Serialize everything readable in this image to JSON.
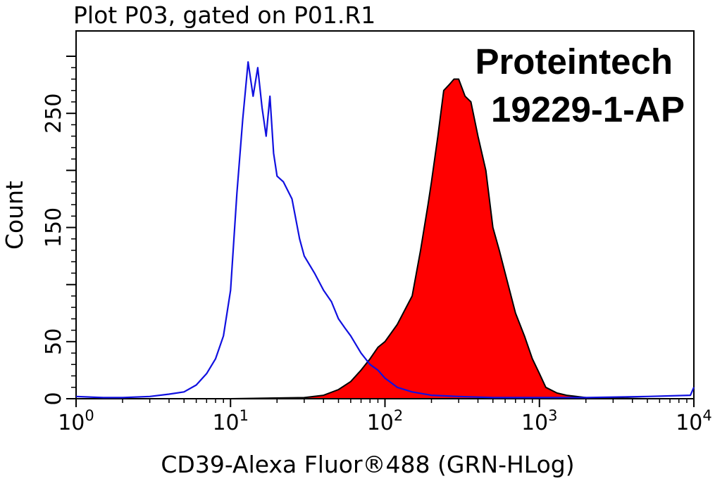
{
  "chart_data": {
    "type": "area",
    "title": "Plot P03, gated on P01.R1",
    "xlabel": "CD39-Alexa Fluor®488 (GRN-HLog)",
    "ylabel": "Count",
    "x_scale": "log",
    "xlim": [
      1,
      10000
    ],
    "ylim": [
      0,
      300
    ],
    "x_ticks": [
      {
        "base": "10",
        "exp": "0"
      },
      {
        "base": "10",
        "exp": "1"
      },
      {
        "base": "10",
        "exp": "2"
      },
      {
        "base": "10",
        "exp": "3"
      },
      {
        "base": "10",
        "exp": "4"
      }
    ],
    "y_ticks": [
      {
        "value": 0,
        "label": "0"
      },
      {
        "value": 50,
        "label": "50"
      },
      {
        "value": 150,
        "label": "150"
      },
      {
        "value": 250,
        "label": "250"
      }
    ],
    "annotations": [
      "Proteintech",
      "19229-1-AP"
    ],
    "colors": {
      "control_line": "#1010e0",
      "sample_fill": "#ff0000",
      "sample_line": "#000000"
    },
    "series": [
      {
        "style": "blue outline",
        "x": [
          1,
          1.5,
          2,
          3,
          4,
          5,
          6,
          7,
          8,
          9,
          10,
          11,
          12,
          13,
          14,
          15,
          16,
          17,
          18,
          19,
          20,
          22,
          25,
          28,
          30,
          35,
          40,
          45,
          50,
          55,
          60,
          70,
          80,
          90,
          100,
          120,
          150,
          200,
          300,
          500,
          1000,
          2000,
          5000,
          9500,
          10000
        ],
        "y": [
          2,
          1,
          1,
          2,
          4,
          6,
          12,
          22,
          35,
          55,
          95,
          180,
          245,
          295,
          265,
          290,
          255,
          230,
          265,
          215,
          195,
          190,
          175,
          140,
          125,
          110,
          95,
          85,
          70,
          62,
          55,
          40,
          30,
          25,
          18,
          10,
          6,
          3,
          2,
          1,
          1,
          1,
          2,
          3,
          10
        ]
      },
      {
        "style": "red filled, black outline",
        "x": [
          1,
          10,
          30,
          40,
          50,
          60,
          70,
          80,
          90,
          100,
          120,
          150,
          170,
          190,
          200,
          220,
          240,
          260,
          280,
          300,
          330,
          360,
          400,
          450,
          500,
          550,
          600,
          700,
          800,
          900,
          1000,
          1100,
          1300,
          1500,
          2000,
          5000,
          10000
        ],
        "y": [
          0,
          0,
          1,
          3,
          8,
          15,
          25,
          35,
          45,
          50,
          65,
          90,
          130,
          170,
          190,
          230,
          270,
          275,
          280,
          280,
          265,
          260,
          230,
          200,
          150,
          130,
          110,
          75,
          55,
          35,
          22,
          10,
          5,
          3,
          1,
          0,
          0
        ]
      }
    ]
  }
}
